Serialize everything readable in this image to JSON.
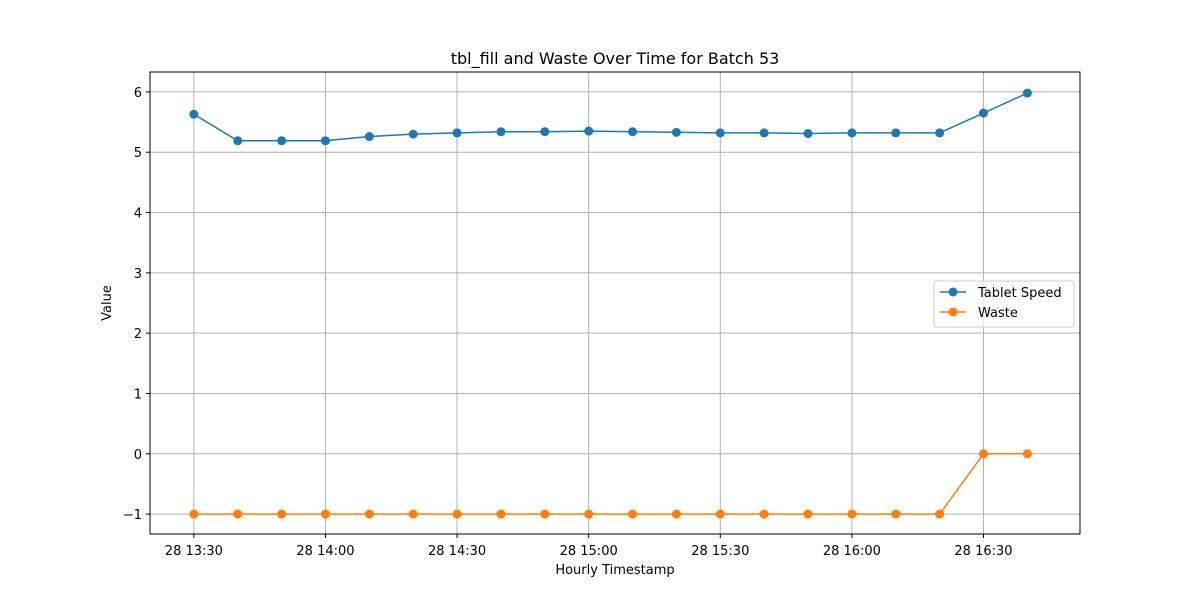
{
  "chart_data": {
    "type": "line",
    "title": "tbl_fill and Waste Over Time for Batch 53",
    "xlabel": "Hourly Timestamp",
    "ylabel": "Value",
    "xlim": [
      "2024-01-28 13:20",
      "2024-01-28 16:52"
    ],
    "ylim": [
      -1.33,
      6.33
    ],
    "x_ticks": [
      "2024-01-28 13:30",
      "2024-01-28 14:00",
      "2024-01-28 14:30",
      "2024-01-28 15:00",
      "2024-01-28 15:30",
      "2024-01-28 16:00",
      "2024-01-28 16:30"
    ],
    "x_tick_labels": [
      "28 13:30",
      "28 14:00",
      "28 14:30",
      "28 15:00",
      "28 15:30",
      "28 16:00",
      "28 16:30"
    ],
    "y_ticks": [
      -1,
      0,
      1,
      2,
      3,
      4,
      5,
      6
    ],
    "y_tick_labels": [
      "−1",
      "0",
      "1",
      "2",
      "3",
      "4",
      "5",
      "6"
    ],
    "grid": true,
    "legend_position": "center-right",
    "x": [
      "2024-01-28 13:30",
      "2024-01-28 13:40",
      "2024-01-28 13:50",
      "2024-01-28 14:00",
      "2024-01-28 14:10",
      "2024-01-28 14:20",
      "2024-01-28 14:30",
      "2024-01-28 14:40",
      "2024-01-28 14:50",
      "2024-01-28 15:00",
      "2024-01-28 15:10",
      "2024-01-28 15:20",
      "2024-01-28 15:30",
      "2024-01-28 15:40",
      "2024-01-28 15:50",
      "2024-01-28 16:00",
      "2024-01-28 16:10",
      "2024-01-28 16:20",
      "2024-01-28 16:30",
      "2024-01-28 16:40"
    ],
    "series": [
      {
        "name": "Tablet Speed",
        "color": "#1f77b4",
        "values": [
          5.63,
          5.19,
          5.19,
          5.19,
          5.26,
          5.3,
          5.32,
          5.34,
          5.34,
          5.35,
          5.34,
          5.33,
          5.32,
          5.32,
          5.31,
          5.32,
          5.32,
          5.32,
          5.65,
          5.98
        ]
      },
      {
        "name": "Waste",
        "color": "#ff7f0e",
        "values": [
          -1,
          -1,
          -1,
          -1,
          -1,
          -1,
          -1,
          -1,
          -1,
          -1,
          -1,
          -1,
          -1,
          -1,
          -1,
          -1,
          -1,
          -1,
          0,
          0
        ]
      }
    ]
  }
}
